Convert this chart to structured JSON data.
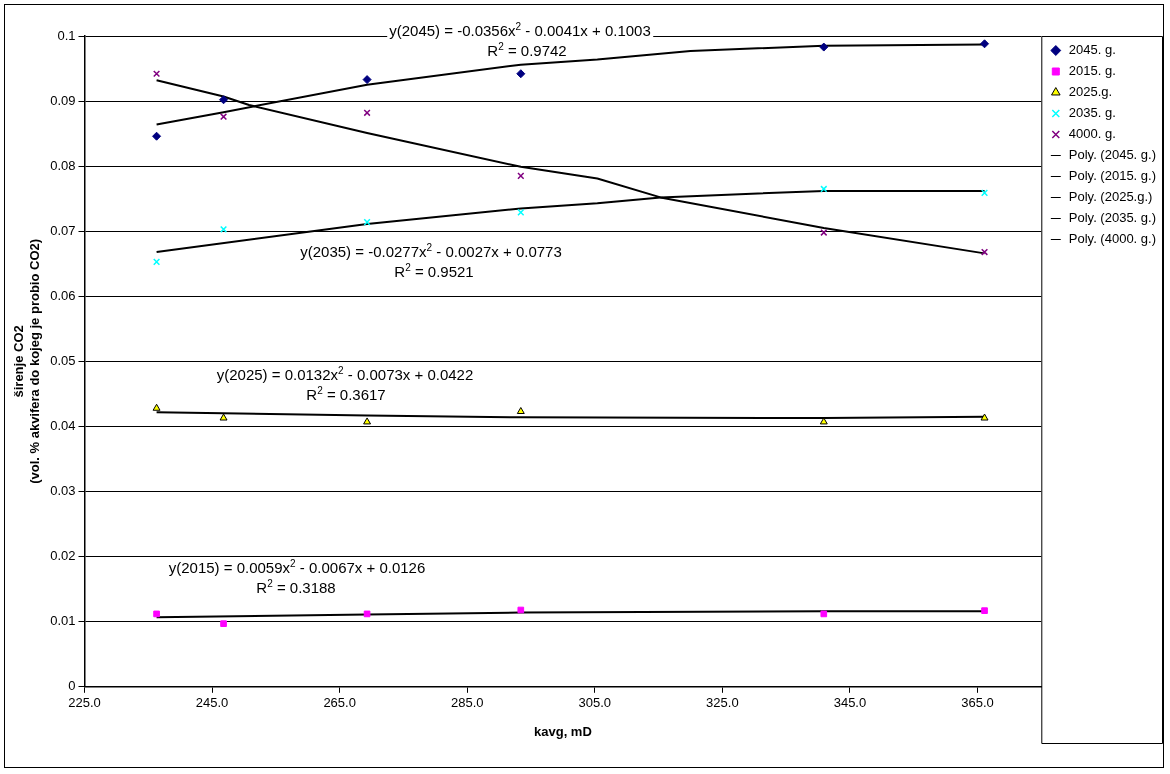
{
  "chart_data": {
    "type": "scatter",
    "xlabel": "kavg, mD",
    "ylabel": "širenje CO2\n(vol. % akvifera do kojeg je probio CO2)",
    "x": [
      236.3,
      246.8,
      269.3,
      293.4,
      340.9,
      366.1
    ],
    "xlim": [
      225,
      375
    ],
    "xticks": [
      {
        "value": 225,
        "label": "225.0"
      },
      {
        "value": 245,
        "label": "245.0"
      },
      {
        "value": 265,
        "label": "265.0"
      },
      {
        "value": 285,
        "label": "285.0"
      },
      {
        "value": 305,
        "label": "305.0"
      },
      {
        "value": 325,
        "label": "325.0"
      },
      {
        "value": 345,
        "label": "345.0"
      },
      {
        "value": 365,
        "label": "365.0"
      }
    ],
    "ylim": [
      0,
      0.1
    ],
    "yticks": [
      0,
      0.01,
      0.02,
      0.03,
      0.04,
      0.05,
      0.06,
      0.07,
      0.08,
      0.09,
      0.1
    ],
    "grid": "y",
    "legend": "right",
    "series": [
      {
        "name": "2045. g.",
        "color": "#000080",
        "marker": "diamond",
        "values": [
          0.0846,
          0.0902,
          0.0933,
          0.0942,
          0.0983,
          0.0988
        ]
      },
      {
        "name": "2015. g.",
        "color": "#ff00ff",
        "marker": "square",
        "values": [
          0.0112,
          0.0097,
          0.0112,
          0.0118,
          0.0112,
          0.0117
        ]
      },
      {
        "name": "2025.g.",
        "color": "#ffff00",
        "marker": "triangle",
        "values": [
          0.0428,
          0.0413,
          0.0407,
          0.0423,
          0.0407,
          0.0413
        ]
      },
      {
        "name": "2035. g.",
        "color": "#00ffff",
        "marker": "cross",
        "values": [
          0.0653,
          0.0703,
          0.0714,
          0.0729,
          0.0765,
          0.0759
        ]
      },
      {
        "name": "4000. g.",
        "color": "#800080",
        "marker": "cross",
        "values": [
          0.0942,
          0.0876,
          0.0882,
          0.0785,
          0.0698,
          0.0668
        ]
      },
      {
        "name": "Poly. (2045. g.)",
        "type": "line",
        "color": "#000000",
        "marker": "none",
        "x": [
          236.3,
          246.8,
          269.3,
          293.4,
          305.4,
          320,
          340.9,
          366.1
        ],
        "values": [
          0.0864,
          0.0883,
          0.0925,
          0.0956,
          0.0964,
          0.0977,
          0.0985,
          0.0987
        ]
      },
      {
        "name": "Poly. (2015. g.)",
        "type": "line",
        "color": "#000000",
        "marker": "none",
        "x": [
          236.3,
          269.3,
          293.4,
          340.9,
          366.1
        ],
        "values": [
          0.0107,
          0.0111,
          0.0114,
          0.0116,
          0.0116
        ]
      },
      {
        "name": "Poly. (2025.g.)",
        "type": "line",
        "color": "#000000",
        "marker": "none",
        "x": [
          236.3,
          269.3,
          293.4,
          340.9,
          366.1
        ],
        "values": [
          0.0422,
          0.0417,
          0.0414,
          0.0413,
          0.0415
        ]
      },
      {
        "name": "Poly. (2035. g.)",
        "type": "line",
        "color": "#000000",
        "marker": "none",
        "x": [
          236.3,
          269.3,
          293.4,
          305.4,
          315.3,
          340.9,
          366.1
        ],
        "values": [
          0.0668,
          0.0711,
          0.0735,
          0.0743,
          0.0752,
          0.0762,
          0.0762
        ]
      },
      {
        "name": "Poly. (4000. g.)",
        "type": "line",
        "color": "#000000",
        "marker": "none",
        "x": [
          236.3,
          246.8,
          250.8,
          269.3,
          293.4,
          305.4,
          315.3,
          340.9,
          366.1
        ],
        "values": [
          0.0932,
          0.0907,
          0.0894,
          0.0851,
          0.0799,
          0.0781,
          0.0752,
          0.0705,
          0.0666
        ]
      }
    ],
    "annotations": [
      "y(2045) = -0.0356x$^{2}$ - 0.0041x + 0.1003",
      "R$^{2}$ = 0.9742",
      "y(2035) = -0.0277x$^{2}$ - 0.0027x + 0.0773",
      "R$^{2}$ = 0.9521",
      "y(2025) = 0.0132x$^{2}$ - 0.0073x + 0.0422",
      "R$^{2}$ = 0.3617",
      "y(2015) = 0.0059x$^{2}$ - 0.0067x + 0.0126",
      "R$^{2}$ = 0.3188"
    ]
  }
}
